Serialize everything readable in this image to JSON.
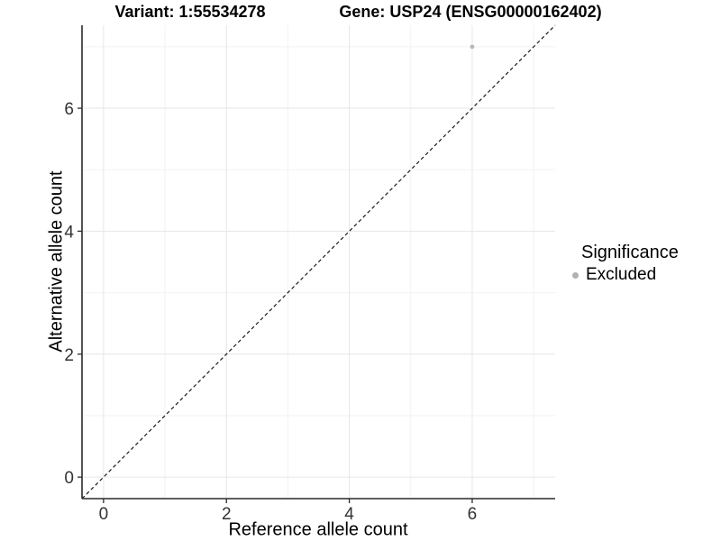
{
  "chart_data": {
    "type": "scatter",
    "titles": {
      "left": "Variant: 1:55534278",
      "right": "Gene: USP24 (ENSG00000162402)"
    },
    "xlabel": "Reference allele count",
    "ylabel": "Alternative allele count",
    "xlim": [
      -0.35,
      7.35
    ],
    "ylim": [
      -0.35,
      7.35
    ],
    "x_major_ticks": [
      0,
      2,
      4,
      6
    ],
    "x_minor_ticks": [
      1,
      3,
      5,
      7
    ],
    "y_major_ticks": [
      0,
      2,
      4,
      6
    ],
    "y_minor_ticks": [
      1,
      3,
      5,
      7
    ],
    "grid": true,
    "series": [
      {
        "name": "Excluded",
        "color": "#b8b8b8",
        "points": [
          {
            "x": 6,
            "y": 7
          }
        ]
      }
    ],
    "reference_line": {
      "type": "identity",
      "slope": 1,
      "intercept": 0,
      "style": "dashed",
      "color": "#1a1a1a"
    },
    "legend": {
      "title": "Significance",
      "position": "right",
      "entries": [
        {
          "label": "Excluded",
          "color": "#b0b0b0"
        }
      ]
    },
    "colors": {
      "grid_major": "#e6e6e6",
      "grid_minor": "#f2f2f2",
      "axis_line": "#2a2a2a",
      "tick_text": "#333333",
      "background": "#ffffff"
    }
  }
}
